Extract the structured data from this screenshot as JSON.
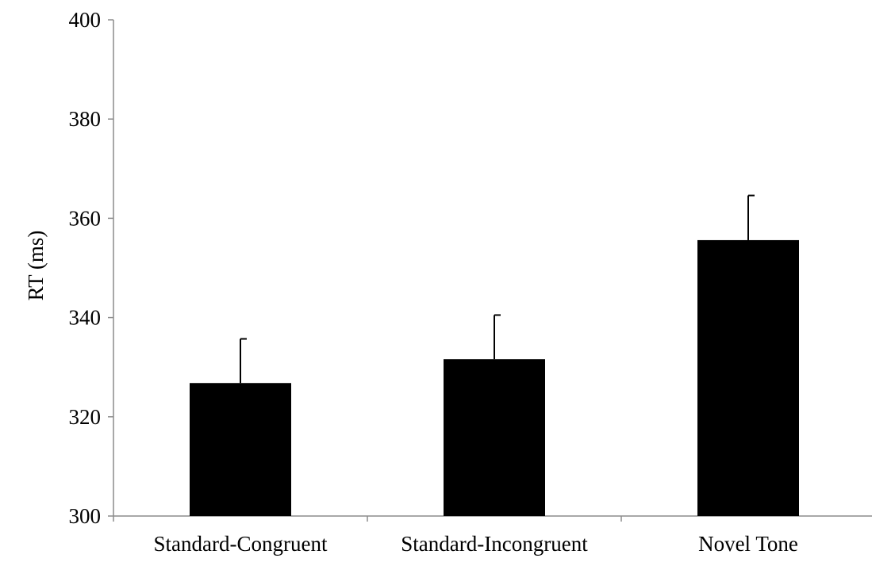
{
  "chart_data": {
    "type": "bar",
    "title": "",
    "xlabel": "",
    "ylabel": "RT (ms)",
    "ylim": [
      300,
      400
    ],
    "yticks": [
      300,
      320,
      340,
      360,
      380,
      400
    ],
    "categories": [
      "Standard-Congruent",
      "Standard-Incongruent",
      "Novel Tone"
    ],
    "values": [
      326.8,
      331.6,
      355.6
    ],
    "error_upper": [
      335.7,
      340.5,
      364.6
    ],
    "grid": false,
    "legend": "none",
    "colors": {
      "bar": "#000000",
      "axis": "#8c8c8c",
      "error_bar": "#000000"
    }
  }
}
